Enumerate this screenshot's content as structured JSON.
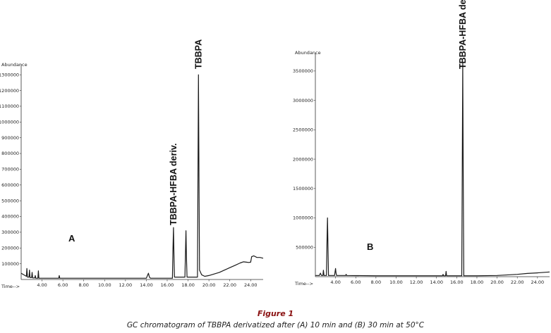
{
  "caption": {
    "title": "Figure 1",
    "text": "GC chromatogram of TBBPA derivatized after (A) 10 min and (B) 30 min at 50°C"
  },
  "chart_data": [
    {
      "type": "line",
      "panel_label": "A",
      "ylabel": "Abundance",
      "xlabel": "Time-->",
      "xlim": [
        2.0,
        25.2
      ],
      "ylim": [
        0,
        1350000
      ],
      "x_ticks": [
        4,
        6,
        8,
        10,
        12,
        14,
        16,
        18,
        20,
        22,
        24
      ],
      "x_tick_labels": [
        "4.00",
        "6.00",
        "8.00",
        "10.00",
        "12.00",
        "14.00",
        "16.00",
        "18.00",
        "20.00",
        "22.00",
        "24.00"
      ],
      "y_ticks": [
        100000,
        200000,
        300000,
        400000,
        500000,
        600000,
        700000,
        800000,
        900000,
        1000000,
        1100000,
        1200000,
        1300000
      ],
      "y_tick_labels": [
        "100000",
        "200000",
        "300000",
        "400000",
        "500000",
        "600000",
        "700000",
        "800000",
        "900000",
        "1000000",
        "1100000",
        "1200000",
        "1300000"
      ],
      "peak_labels": [
        {
          "text": "TBBPA-HFBA deriv.",
          "x": 16.6
        },
        {
          "text": "TBBPA",
          "x": 19.0
        }
      ],
      "series": [
        {
          "x": [
            2.0,
            2.5,
            2.55,
            2.6,
            2.75,
            2.8,
            2.85,
            3.0,
            3.05,
            3.1,
            3.3,
            3.35,
            3.4,
            3.6,
            3.65,
            3.7,
            4.5,
            5.6,
            5.65,
            5.7,
            8.0,
            10.0,
            12.0,
            14.0,
            14.2,
            14.3,
            14.4,
            15.0,
            16.0,
            16.5,
            16.55,
            16.6,
            16.65,
            16.7,
            17.3,
            17.7,
            17.75,
            17.8,
            17.85,
            17.9,
            18.6,
            18.9,
            18.95,
            19.0,
            19.05,
            19.1,
            19.3,
            19.6,
            20.0,
            20.5,
            21.0,
            21.5,
            22.0,
            22.5,
            23.0,
            23.3,
            23.6,
            23.8,
            24.0,
            24.1,
            24.3,
            24.6,
            24.9,
            25.2
          ],
          "y": [
            40000,
            20000,
            70000,
            15000,
            15000,
            60000,
            12000,
            12000,
            45000,
            10000,
            10000,
            25000,
            8000,
            8000,
            55000,
            8000,
            8000,
            8000,
            25000,
            8000,
            8000,
            8000,
            8000,
            8000,
            40000,
            15000,
            8000,
            8000,
            8000,
            8000,
            180000,
            330000,
            150000,
            15000,
            15000,
            15000,
            170000,
            310000,
            140000,
            15000,
            15000,
            15000,
            650000,
            1300000,
            600000,
            60000,
            30000,
            20000,
            25000,
            35000,
            45000,
            60000,
            75000,
            90000,
            105000,
            112000,
            110000,
            108000,
            110000,
            145000,
            150000,
            140000,
            140000,
            135000
          ]
        }
      ]
    },
    {
      "type": "line",
      "panel_label": "B",
      "ylabel": "Abundance",
      "xlabel": "Time-->",
      "xlim": [
        2.0,
        25.2
      ],
      "ylim": [
        0,
        3750000
      ],
      "x_ticks": [
        4,
        6,
        8,
        10,
        12,
        14,
        16,
        18,
        20,
        22,
        24
      ],
      "x_tick_labels": [
        "4.00",
        "6.00",
        "8.00",
        "10.00",
        "12.00",
        "14.00",
        "16.00",
        "18.00",
        "20.00",
        "22.00",
        "24.00"
      ],
      "y_ticks": [
        500000,
        1000000,
        1500000,
        2000000,
        2500000,
        3000000,
        3500000
      ],
      "y_tick_labels": [
        "500000",
        "1000000",
        "1500000",
        "2000000",
        "2500000",
        "3000000",
        "3500000"
      ],
      "peak_labels": [
        {
          "text": "TBBPA-HFBA deriv.",
          "x": 16.6
        }
      ],
      "series": [
        {
          "x": [
            2.0,
            2.4,
            2.5,
            2.6,
            2.75,
            2.8,
            2.85,
            3.1,
            3.15,
            3.2,
            3.25,
            3.3,
            3.9,
            3.95,
            4.0,
            4.05,
            4.1,
            5.0,
            5.05,
            5.1,
            8.0,
            12.0,
            14.6,
            14.65,
            14.7,
            14.9,
            14.95,
            15.0,
            16.0,
            16.5,
            16.55,
            16.6,
            16.65,
            16.7,
            18.0,
            20.0,
            22.0,
            23.0,
            24.0,
            25.2
          ],
          "y": [
            20000,
            20000,
            60000,
            20000,
            20000,
            110000,
            20000,
            20000,
            600000,
            1000000,
            500000,
            20000,
            20000,
            80000,
            140000,
            60000,
            20000,
            20000,
            40000,
            20000,
            15000,
            15000,
            15000,
            40000,
            15000,
            15000,
            90000,
            15000,
            15000,
            15000,
            1800000,
            3650000,
            1700000,
            15000,
            15000,
            20000,
            40000,
            55000,
            65000,
            80000
          ]
        }
      ]
    }
  ]
}
